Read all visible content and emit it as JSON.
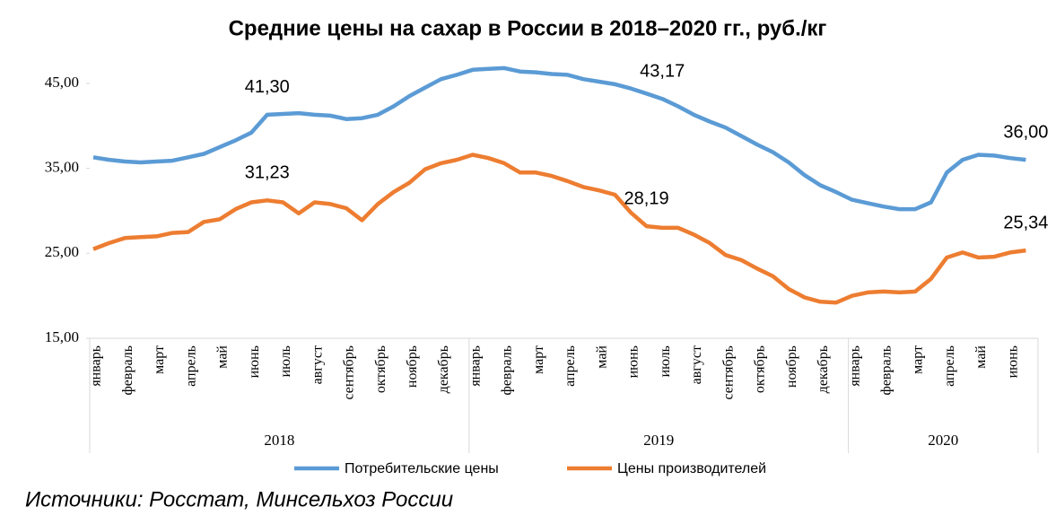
{
  "chart_data": {
    "type": "line",
    "title": "Средние цены на сахар в России в 2018–2020 гг., руб./кг",
    "source": "Источники: Росстат, Минсельхоз России",
    "categories": [
      "январь",
      null,
      "февраль",
      null,
      "март",
      null,
      "апрель",
      null,
      "май",
      null,
      "июнь",
      null,
      "июль",
      null,
      "август",
      null,
      "сентябрь",
      null,
      "октябрь",
      null,
      "ноябрь",
      null,
      "декабрь",
      null,
      "январь",
      null,
      "февраль",
      null,
      "март",
      null,
      "апрель",
      null,
      "май",
      null,
      "июнь",
      null,
      "июль",
      null,
      "август",
      null,
      "сентябрь",
      null,
      "октябрь",
      null,
      "ноябрь",
      null,
      "декабрь",
      null,
      "январь",
      null,
      "февраль",
      null,
      "март",
      null,
      "апрель",
      null,
      "май",
      null,
      "июнь",
      null
    ],
    "years": [
      "2018",
      "2019",
      "2020"
    ],
    "series": [
      {
        "name": "Потребительские цены",
        "color": "#5b9bd5",
        "values": [
          36.3,
          36.0,
          35.8,
          35.7,
          35.8,
          35.9,
          36.3,
          36.7,
          37.5,
          38.3,
          39.2,
          41.3,
          41.4,
          41.5,
          41.3,
          41.2,
          40.8,
          40.9,
          41.3,
          42.3,
          43.5,
          44.5,
          45.5,
          46.0,
          46.6,
          46.7,
          46.8,
          46.4,
          46.3,
          46.1,
          46.0,
          45.5,
          45.2,
          44.9,
          44.4,
          43.8,
          43.17,
          42.3,
          41.3,
          40.5,
          39.8,
          38.8,
          37.8,
          36.9,
          35.7,
          34.2,
          33.0,
          32.2,
          31.3,
          30.9,
          30.5,
          30.2,
          30.2,
          31.0,
          34.5,
          36.0,
          36.6,
          36.5,
          36.2,
          36.0
        ],
        "value_labels": [
          null,
          null,
          null,
          null,
          null,
          null,
          null,
          null,
          null,
          null,
          null,
          "41,30",
          null,
          null,
          null,
          null,
          null,
          null,
          null,
          null,
          null,
          null,
          null,
          null,
          null,
          null,
          null,
          null,
          null,
          null,
          null,
          null,
          null,
          null,
          null,
          null,
          "43,17",
          null,
          null,
          null,
          null,
          null,
          null,
          null,
          null,
          null,
          null,
          null,
          null,
          null,
          null,
          null,
          null,
          null,
          null,
          null,
          null,
          null,
          null,
          "36,00"
        ]
      },
      {
        "name": "Цены производителей",
        "color": "#ed7d31",
        "values": [
          25.5,
          26.2,
          26.8,
          26.9,
          27.0,
          27.4,
          27.5,
          28.7,
          29.0,
          30.2,
          31.0,
          31.23,
          31.0,
          29.7,
          31.0,
          30.8,
          30.3,
          28.9,
          30.8,
          32.2,
          33.3,
          34.9,
          35.6,
          36.0,
          36.6,
          36.2,
          35.6,
          34.5,
          34.5,
          34.1,
          33.5,
          32.8,
          32.4,
          31.9,
          29.8,
          28.19,
          28.0,
          28.0,
          27.2,
          26.2,
          24.8,
          24.2,
          23.2,
          22.3,
          20.8,
          19.8,
          19.3,
          19.2,
          20.0,
          20.4,
          20.5,
          20.4,
          20.5,
          22.0,
          24.5,
          25.1,
          24.5,
          24.6,
          25.1,
          25.34
        ],
        "value_labels": [
          null,
          null,
          null,
          null,
          null,
          null,
          null,
          null,
          null,
          null,
          null,
          "31,23",
          null,
          null,
          null,
          null,
          null,
          null,
          null,
          null,
          null,
          null,
          null,
          null,
          null,
          null,
          null,
          null,
          null,
          null,
          null,
          null,
          null,
          null,
          null,
          "28,19",
          null,
          null,
          null,
          null,
          null,
          null,
          null,
          null,
          null,
          null,
          null,
          null,
          null,
          null,
          null,
          null,
          null,
          null,
          null,
          null,
          null,
          null,
          null,
          "25,34"
        ]
      }
    ],
    "ylim": [
      15,
      48
    ],
    "yticks": [
      {
        "value": 15,
        "label": "15,00"
      },
      {
        "value": 25,
        "label": "25,00"
      },
      {
        "value": 35,
        "label": "35,00"
      },
      {
        "value": 45,
        "label": "45,00"
      }
    ],
    "grid": false,
    "legend": "bottom"
  }
}
